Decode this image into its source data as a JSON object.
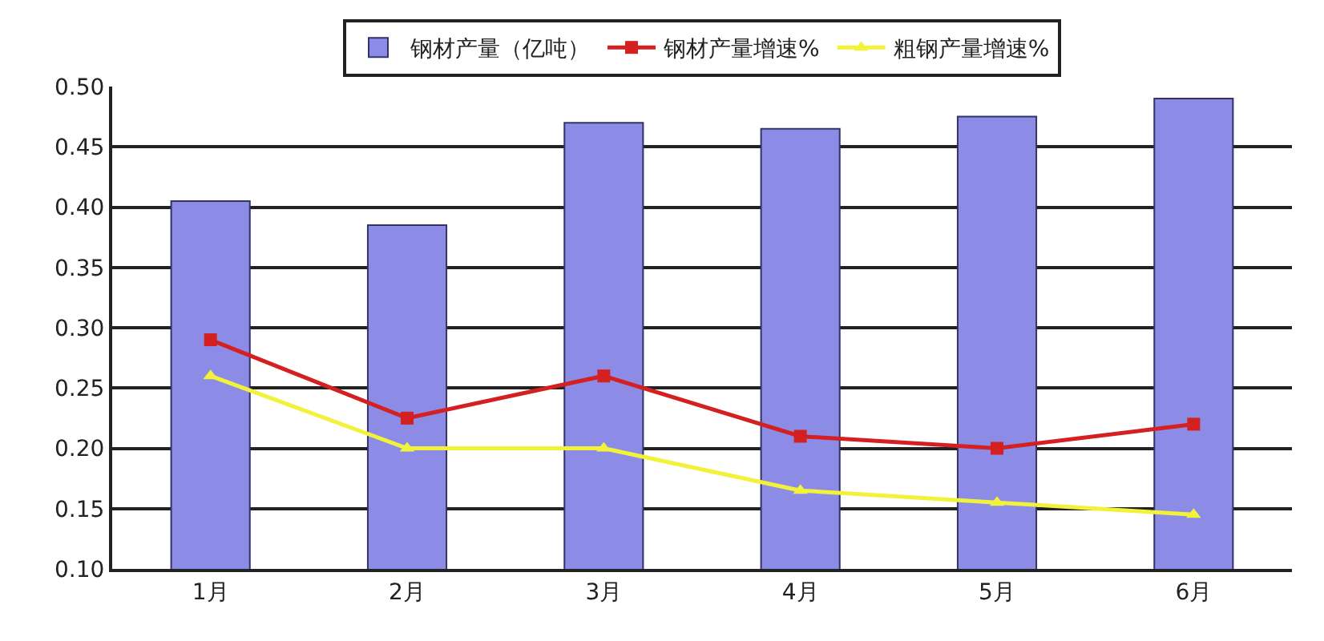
{
  "chart_data": {
    "type": "bar",
    "categories": [
      "1月",
      "2月",
      "3月",
      "4月",
      "5月",
      "6月"
    ],
    "series": [
      {
        "name": "钢材产量（亿吨）",
        "color": "#8c8ce6",
        "values": [
          0.405,
          0.385,
          0.47,
          0.465,
          0.475,
          0.49
        ]
      },
      {
        "name": "钢材产量增速%",
        "type": "line",
        "color": "#d42020",
        "marker": "square",
        "values": [
          0.29,
          0.225,
          0.26,
          0.21,
          0.2,
          0.22
        ]
      },
      {
        "name": "粗钢产量增速%",
        "type": "line",
        "color": "#f2f23a",
        "marker": "triangle",
        "values": [
          0.26,
          0.2,
          0.2,
          0.165,
          0.155,
          0.145
        ]
      }
    ],
    "ylim": [
      0.1,
      0.5
    ],
    "yticks": [
      {
        "value": 0.1,
        "label": "0.10"
      },
      {
        "value": 0.15,
        "label": "0.15"
      },
      {
        "value": 0.2,
        "label": "0.20"
      },
      {
        "value": 0.25,
        "label": "0.25"
      },
      {
        "value": 0.3,
        "label": "0.30"
      },
      {
        "value": 0.35,
        "label": "0.35"
      },
      {
        "value": 0.4,
        "label": "0.40"
      },
      {
        "value": 0.45,
        "label": "0.45"
      },
      {
        "value": 0.5,
        "label": "0.50"
      }
    ],
    "grid": "y",
    "legend": "top"
  }
}
